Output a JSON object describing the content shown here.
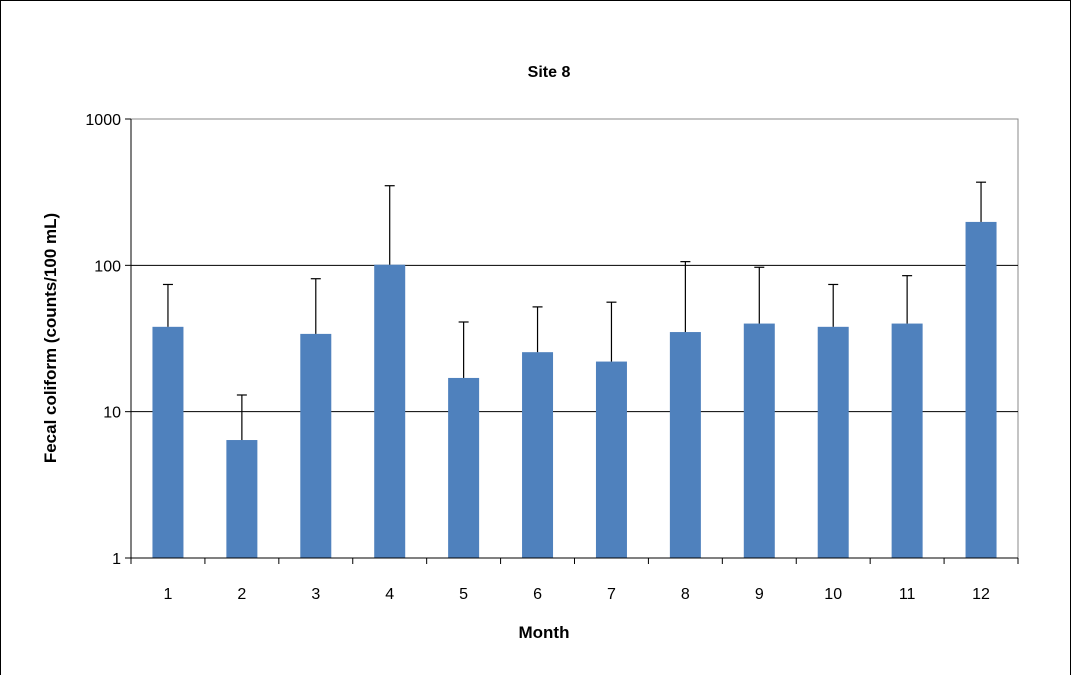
{
  "chart_data": {
    "type": "bar",
    "title": "Site 8",
    "xlabel": "Month",
    "ylabel": "Fecal coliform (counts/100  mL)",
    "yscale": "log",
    "ylim": [
      1,
      1000
    ],
    "y_ticks": [
      "1",
      "10",
      "100",
      "1000"
    ],
    "grid": "horizontal major gridlines at 10 and 100",
    "legend": "none",
    "bar_color": "#4F81BD",
    "categories": [
      "1",
      "2",
      "3",
      "4",
      "5",
      "6",
      "7",
      "8",
      "9",
      "10",
      "11",
      "12"
    ],
    "values": [
      38,
      6.4,
      34,
      101,
      17,
      25.5,
      22,
      35,
      40,
      38,
      40,
      198
    ],
    "error_upper": [
      74,
      13,
      81,
      350,
      41,
      52,
      56,
      106,
      97,
      74,
      85,
      370
    ]
  }
}
